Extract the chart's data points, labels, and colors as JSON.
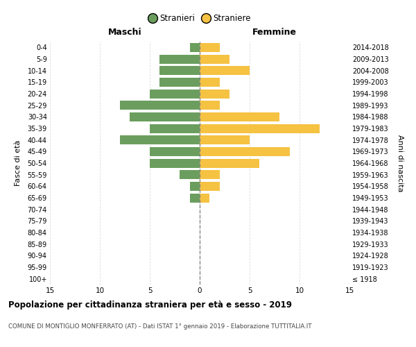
{
  "age_groups": [
    "100+",
    "95-99",
    "90-94",
    "85-89",
    "80-84",
    "75-79",
    "70-74",
    "65-69",
    "60-64",
    "55-59",
    "50-54",
    "45-49",
    "40-44",
    "35-39",
    "30-34",
    "25-29",
    "20-24",
    "15-19",
    "10-14",
    "5-9",
    "0-4"
  ],
  "birth_years": [
    "≤ 1918",
    "1919-1923",
    "1924-1928",
    "1929-1933",
    "1934-1938",
    "1939-1943",
    "1944-1948",
    "1949-1953",
    "1954-1958",
    "1959-1963",
    "1964-1968",
    "1969-1973",
    "1974-1978",
    "1979-1983",
    "1984-1988",
    "1989-1993",
    "1994-1998",
    "1999-2003",
    "2004-2008",
    "2009-2013",
    "2014-2018"
  ],
  "males": [
    0,
    0,
    0,
    0,
    0,
    0,
    0,
    1,
    1,
    2,
    5,
    5,
    8,
    5,
    7,
    8,
    5,
    4,
    4,
    4,
    1
  ],
  "females": [
    0,
    0,
    0,
    0,
    0,
    0,
    0,
    1,
    2,
    2,
    6,
    9,
    5,
    12,
    8,
    2,
    3,
    2,
    5,
    3,
    2
  ],
  "male_color": "#6B9E5E",
  "female_color": "#F5C242",
  "title": "Popolazione per cittadinanza straniera per età e sesso - 2019",
  "subtitle": "COMUNE DI MONTIGLIO MONFERRATO (AT) - Dati ISTAT 1° gennaio 2019 - Elaborazione TUTTITALIA.IT",
  "xlabel_left": "Maschi",
  "xlabel_right": "Femmine",
  "ylabel_left": "Fasce di età",
  "ylabel_right": "Anni di nascita",
  "legend_male": "Stranieri",
  "legend_female": "Straniere",
  "xlim": 15,
  "background_color": "#FFFFFF",
  "grid_color": "#DDDDDD"
}
